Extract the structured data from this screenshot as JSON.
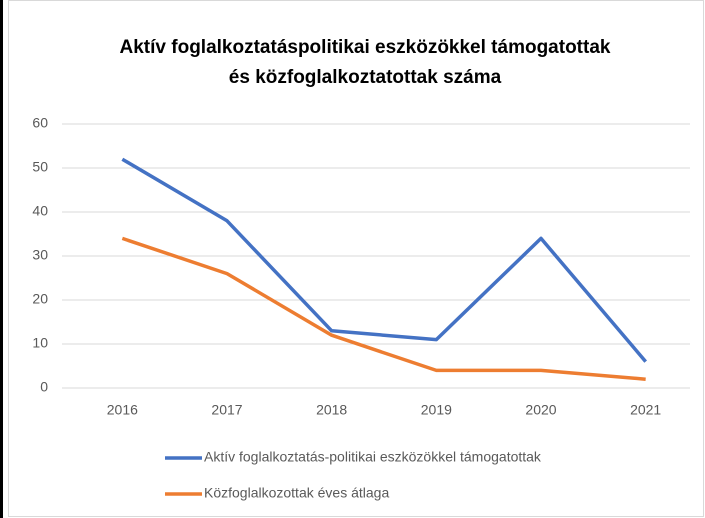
{
  "chart_data": {
    "type": "line",
    "title": [
      "Aktív foglalkoztatáspolitikai eszközökkel támogatottak",
      "és közfoglalkoztatottak száma"
    ],
    "categories": [
      "2016",
      "2017",
      "2018",
      "2019",
      "2020",
      "2021"
    ],
    "series": [
      {
        "name": "Aktív foglalkoztatás-politikai eszközökkel támogatottak",
        "color": "#4472c4",
        "values": [
          52,
          38,
          13,
          11,
          34,
          6
        ]
      },
      {
        "name": "Közfoglalkozottak éves átlaga",
        "color": "#ed7d31",
        "values": [
          34,
          26,
          12,
          4,
          4,
          2
        ]
      }
    ],
    "ylim": [
      0,
      60
    ],
    "yticks": [
      0,
      10,
      20,
      30,
      40,
      50,
      60
    ],
    "grid": true,
    "legend": "bottom"
  }
}
